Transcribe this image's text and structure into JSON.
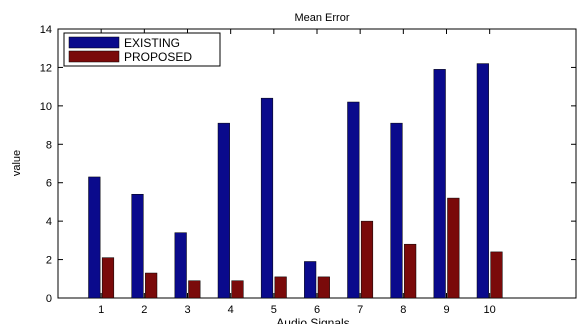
{
  "chart_data": {
    "type": "bar",
    "title": "Mean Error",
    "xlabel": "Audio Signals",
    "ylabel": "value",
    "categories": [
      "1",
      "2",
      "3",
      "4",
      "5",
      "6",
      "7",
      "8",
      "9",
      "10"
    ],
    "xlim": [
      0,
      12
    ],
    "ylim": [
      0,
      14
    ],
    "yticks": [
      0,
      2,
      4,
      6,
      8,
      10,
      12,
      14
    ],
    "grid": false,
    "legend_position": "top-left",
    "series": [
      {
        "name": "EXISTING",
        "color": "#0a0a8c",
        "values": [
          6.3,
          5.4,
          3.4,
          9.1,
          10.4,
          1.9,
          10.2,
          9.1,
          11.9,
          12.2
        ]
      },
      {
        "name": "PROPOSED",
        "color": "#7a0a0a",
        "values": [
          2.1,
          1.3,
          0.9,
          0.9,
          1.1,
          1.1,
          4.0,
          2.8,
          5.2,
          2.4
        ]
      }
    ]
  }
}
